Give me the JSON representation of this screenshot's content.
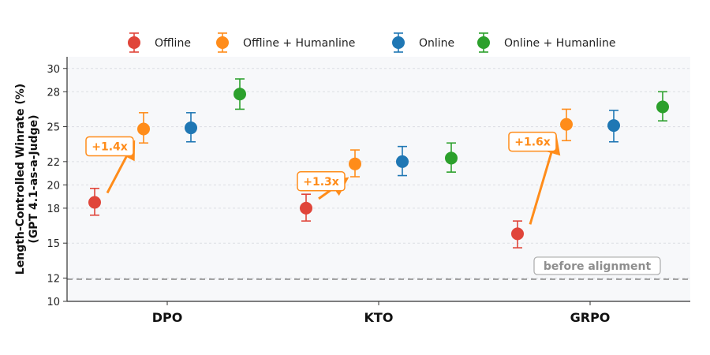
{
  "chart_data": {
    "type": "scatter",
    "ylabel": [
      "Length-Controlled Winrate (%)",
      "(GPT 4.1-as-a-Judge)"
    ],
    "ylim": [
      10,
      31
    ],
    "yticks": [
      10,
      12,
      15,
      18,
      20,
      22,
      25,
      28,
      30
    ],
    "categories": [
      "DPO",
      "KTO",
      "GRPO"
    ],
    "grid": true,
    "legend_position": "top",
    "series": [
      {
        "name": "Offline",
        "color": "#e0453a",
        "values": [
          18.5,
          18.0,
          15.8
        ],
        "err_low": [
          17.4,
          16.9,
          14.6
        ],
        "err_high": [
          19.7,
          19.2,
          16.9
        ]
      },
      {
        "name": "Offline + Humanline",
        "color": "#ff8c1a",
        "values": [
          24.8,
          21.8,
          25.2
        ],
        "err_low": [
          23.6,
          20.7,
          23.8
        ],
        "err_high": [
          26.2,
          23.0,
          26.5
        ]
      },
      {
        "name": "Online",
        "color": "#1f77b4",
        "values": [
          24.9,
          22.0,
          25.1
        ],
        "err_low": [
          23.7,
          20.8,
          23.7
        ],
        "err_high": [
          26.2,
          23.3,
          26.4
        ]
      },
      {
        "name": "Online + Humanline",
        "color": "#2ca02c",
        "values": [
          27.8,
          22.3,
          26.7
        ],
        "err_low": [
          26.5,
          21.1,
          25.5
        ],
        "err_high": [
          29.1,
          23.6,
          28.0
        ]
      }
    ],
    "annotations": [
      {
        "category": "DPO",
        "label": "+1.4x",
        "from": 18.5,
        "to": 24.8
      },
      {
        "category": "KTO",
        "label": "+1.3x",
        "from": 18.0,
        "to": 21.8
      },
      {
        "category": "GRPO",
        "label": "+1.6x",
        "from": 15.8,
        "to": 25.2
      }
    ],
    "baseline": {
      "label": "before alignment",
      "value": 11.9
    }
  }
}
